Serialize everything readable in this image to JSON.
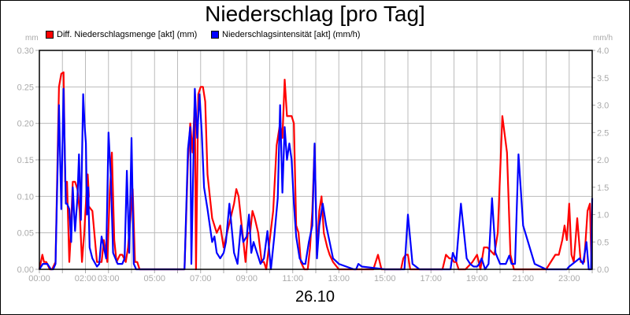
{
  "title": "Niederschlag [pro Tag]",
  "date_label": "26.10",
  "legend": [
    {
      "label": "Diff. Niederschlagsmenge [akt] (mm)",
      "color": "#ff0000"
    },
    {
      "label": "Niederschlagsintensität [akt] (mm/h)",
      "color": "#0000ff"
    }
  ],
  "left_axis": {
    "unit": "mm",
    "ticks": [
      "0.00",
      "0.05",
      "0.10",
      "0.15",
      "0.20",
      "0.25",
      "0.30"
    ]
  },
  "right_axis": {
    "unit": "mm/h",
    "ticks": [
      "0.0",
      "0.5",
      "1.0",
      "1.5",
      "2.0",
      "2.5",
      "3.0",
      "3.5",
      "4.0"
    ]
  },
  "x_axis": {
    "ticks": [
      "00:00",
      "02:00 03:00",
      "05:00",
      "07:00",
      "09:00",
      "11:00",
      "13:00",
      "15:00",
      "17:00",
      "19:00",
      "21:00",
      "23:00"
    ]
  },
  "chart_data": {
    "type": "line",
    "title": "Niederschlag [pro Tag]",
    "xlabel": "26.10",
    "ylabel_left": "mm",
    "ylabel_right": "mm/h",
    "ylim_left": [
      0,
      0.3
    ],
    "ylim_right": [
      0,
      4.0
    ],
    "xlim_hours": [
      0,
      24
    ],
    "grid": true,
    "legend_position": "top",
    "x_tick_labels": [
      "00:00",
      "02:00",
      "03:00",
      "05:00",
      "07:00",
      "09:00",
      "11:00",
      "13:00",
      "15:00",
      "17:00",
      "19:00",
      "21:00",
      "23:00"
    ],
    "series": [
      {
        "name": "Diff. Niederschlagsmenge [akt] (mm)",
        "axis": "left",
        "color": "#ff0000",
        "x_hours": [
          0,
          0.13,
          0.2,
          0.3,
          0.45,
          0.55,
          0.7,
          0.85,
          0.95,
          1.05,
          1.12,
          1.2,
          1.3,
          1.35,
          1.45,
          1.55,
          1.65,
          1.75,
          1.85,
          1.95,
          2.0,
          2.1,
          2.15,
          2.05,
          2.3,
          2.5,
          2.7,
          2.8,
          2.95,
          3.05,
          3.15,
          3.25,
          3.35,
          3.5,
          3.6,
          3.75,
          3.85,
          3.95,
          4.05,
          4.15,
          4.25,
          4.35,
          4.5,
          4.65,
          4.75,
          4.85,
          5.0,
          5.5,
          6.0,
          6.3,
          6.45,
          6.55,
          6.65,
          6.75,
          6.8,
          6.9,
          7.0,
          7.1,
          7.2,
          7.3,
          7.5,
          7.7,
          7.85,
          8.0,
          8.15,
          8.3,
          8.45,
          8.55,
          8.65,
          8.75,
          8.85,
          8.95,
          9.05,
          9.15,
          9.25,
          9.35,
          9.5,
          9.65,
          9.75,
          9.85,
          10.0,
          10.15,
          10.3,
          10.45,
          10.55,
          10.65,
          10.75,
          10.85,
          10.95,
          11.05,
          11.15,
          11.25,
          11.35,
          11.5,
          11.65,
          11.75,
          11.85,
          11.95,
          12.05,
          12.15,
          12.25,
          12.35,
          12.5,
          12.6,
          12.75,
          13.0,
          13.5,
          14.0,
          14.5,
          14.7,
          14.85,
          15.0,
          15.5,
          15.7,
          15.8,
          15.9,
          16.0,
          16.1,
          16.2,
          16.5,
          17.0,
          17.5,
          17.65,
          17.8,
          17.9,
          18.0,
          18.1,
          18.2,
          18.3,
          18.5,
          18.8,
          19.0,
          19.15,
          19.3,
          19.45,
          19.6,
          19.75,
          19.9,
          20.1,
          20.3,
          20.45,
          20.6,
          20.75,
          20.9,
          21.1,
          21.5,
          22.0,
          22.4,
          22.55,
          22.7,
          22.8,
          22.9,
          23.0,
          23.1,
          23.2,
          23.35,
          23.5,
          23.65,
          23.8,
          23.9,
          23.97
        ],
        "values": [
          0,
          0.02,
          0.01,
          0.01,
          0,
          0,
          0.01,
          0.25,
          0.268,
          0.27,
          0.12,
          0.12,
          0.01,
          0.04,
          0.12,
          0.12,
          0.11,
          0.08,
          0.01,
          0.05,
          0.08,
          0.13,
          0.1,
          0.09,
          0.08,
          0.01,
          0.01,
          0.04,
          0.01,
          0.1,
          0.16,
          0.04,
          0.01,
          0.02,
          0.02,
          0.01,
          0.03,
          0.07,
          0.11,
          0.01,
          0.01,
          0,
          0,
          0,
          0,
          0,
          0,
          0,
          0,
          0,
          0.15,
          0.2,
          0.16,
          0.23,
          0,
          0.24,
          0.25,
          0.25,
          0.23,
          0.13,
          0.07,
          0.05,
          0.06,
          0.03,
          0.05,
          0.07,
          0.09,
          0.11,
          0.1,
          0.07,
          0.04,
          0.01,
          0.05,
          0.05,
          0.08,
          0.07,
          0.05,
          0.01,
          0.01,
          0,
          0.04,
          0.08,
          0.17,
          0.2,
          0.18,
          0.26,
          0.21,
          0.21,
          0.21,
          0.2,
          0.06,
          0.05,
          0.01,
          0,
          0,
          0.03,
          0.08,
          0.17,
          0.02,
          0.08,
          0.1,
          0.05,
          0.03,
          0.02,
          0.01,
          0,
          0,
          0,
          0,
          0.02,
          0,
          0,
          0,
          0,
          0.015,
          0.02,
          0.02,
          0,
          0,
          0,
          0,
          0,
          0.02,
          0.015,
          0.015,
          0.01,
          0.01,
          0,
          0,
          0,
          0.01,
          0.02,
          0,
          0.03,
          0.03,
          0.025,
          0.02,
          0.05,
          0.21,
          0.16,
          0.02,
          0,
          0,
          0,
          0,
          0,
          0,
          0.02,
          0.02,
          0.04,
          0.06,
          0.04,
          0.09,
          0.02,
          0.01,
          0.07,
          0.01,
          0.01,
          0.08,
          0.09
        ]
      },
      {
        "name": "Niederschlagsintensität [akt] (mm/h)",
        "axis": "right",
        "color": "#0000ff",
        "x_hours": [
          0,
          0.15,
          0.25,
          0.35,
          0.5,
          0.6,
          0.7,
          0.85,
          0.95,
          1.05,
          1.15,
          1.2,
          1.3,
          1.38,
          1.45,
          1.55,
          1.65,
          1.72,
          1.8,
          1.9,
          1.97,
          2.02,
          2.07,
          2.12,
          2.18,
          2.3,
          2.5,
          2.6,
          2.7,
          2.8,
          2.9,
          3.0,
          3.1,
          3.2,
          3.3,
          3.4,
          3.5,
          3.6,
          3.7,
          3.8,
          3.9,
          4.0,
          4.1,
          4.2,
          4.3,
          4.45,
          4.6,
          5.0,
          5.5,
          6.0,
          6.3,
          6.45,
          6.55,
          6.6,
          6.75,
          6.85,
          6.95,
          7.05,
          7.15,
          7.3,
          7.5,
          7.6,
          7.7,
          7.85,
          8.0,
          8.1,
          8.25,
          8.45,
          8.6,
          8.75,
          8.85,
          9.0,
          9.1,
          9.2,
          9.3,
          9.45,
          9.6,
          9.75,
          9.9,
          10.05,
          10.2,
          10.35,
          10.45,
          10.55,
          10.65,
          10.75,
          10.85,
          10.95,
          11.05,
          11.15,
          11.3,
          11.45,
          11.55,
          11.7,
          11.85,
          11.95,
          12.05,
          12.15,
          12.3,
          12.45,
          12.6,
          12.75,
          13.0,
          13.65,
          13.75,
          13.85,
          14.0,
          15.0,
          15.6,
          15.72,
          15.85,
          16.0,
          16.2,
          16.5,
          17.0,
          17.45,
          17.6,
          17.75,
          17.85,
          17.95,
          18.1,
          18.3,
          18.55,
          18.7,
          18.85,
          19.0,
          19.1,
          19.2,
          19.35,
          19.5,
          19.65,
          19.8,
          20.0,
          20.25,
          20.4,
          20.5,
          20.65,
          20.8,
          21.0,
          21.5,
          22.0,
          22.4,
          22.55,
          22.7,
          22.8,
          22.9,
          23.0,
          23.15,
          23.3,
          23.45,
          23.6,
          23.75,
          23.85,
          23.95,
          24.0
        ],
        "values": [
          0,
          0.1,
          0.1,
          0.1,
          0,
          0,
          0.1,
          3.0,
          1.1,
          3.3,
          1.2,
          1.2,
          1.1,
          0.5,
          1.5,
          0.7,
          1.3,
          2.1,
          0.9,
          3.2,
          2.6,
          2.3,
          1.0,
          1.5,
          0.4,
          0.2,
          0.05,
          0.1,
          0.6,
          0.4,
          0.2,
          2.5,
          1.7,
          0.3,
          0.2,
          0.1,
          0.1,
          0.1,
          0.2,
          1.8,
          0.3,
          2.4,
          0.1,
          0,
          0,
          0,
          0,
          0,
          0,
          0,
          0,
          2.2,
          2.6,
          0.1,
          3.3,
          2.4,
          3.2,
          2.5,
          1.5,
          1.1,
          0.5,
          0.6,
          0.3,
          0.2,
          0.3,
          0.5,
          1.2,
          0.3,
          0.1,
          0.8,
          0.5,
          0.6,
          1.0,
          0.3,
          0.5,
          0.3,
          0.1,
          0.2,
          0.7,
          0,
          0.6,
          1.3,
          3.0,
          1.4,
          2.6,
          2.0,
          2.3,
          2.0,
          1.2,
          0.6,
          0.2,
          0.1,
          0.1,
          0.5,
          0.8,
          2.3,
          0.2,
          0.8,
          1.2,
          0.8,
          0.5,
          0.2,
          0.1,
          0,
          0,
          0.1,
          0.05,
          0,
          0,
          0,
          0,
          1.0,
          0.1,
          0,
          0,
          0,
          0,
          0,
          0,
          0.3,
          0.15,
          1.2,
          0.2,
          0.1,
          0.05,
          0.05,
          0.1,
          0.2,
          0,
          0.1,
          1.3,
          0.3,
          0.1,
          0.1,
          0.25,
          0.1,
          0.1,
          2.1,
          0.8,
          0.1,
          0,
          0,
          0,
          0,
          0,
          0,
          0.05,
          0.1,
          0.15,
          0.2,
          0.1,
          0.5,
          0,
          0,
          1.3,
          1.3,
          0,
          2.3,
          0.7
        ]
      }
    ]
  }
}
